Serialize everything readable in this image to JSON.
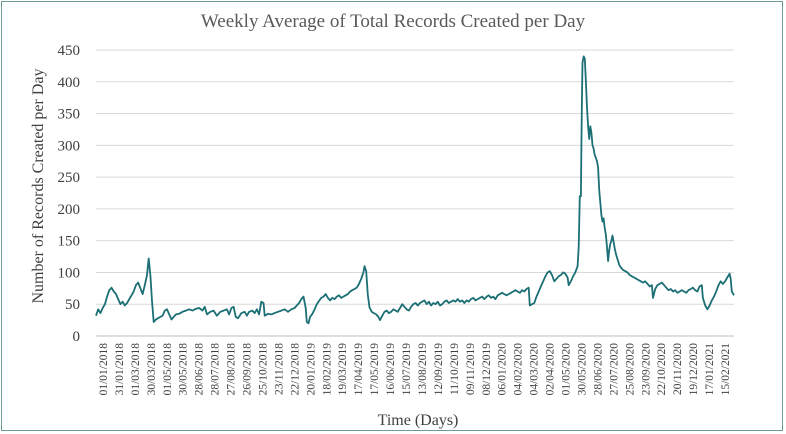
{
  "chart_data": {
    "type": "line",
    "title": "Weekly Average of Total Records Created per Day",
    "xlabel": "Time (Days)",
    "ylabel": "Number of Records Created per Day",
    "ylim": [
      0,
      450
    ],
    "yticks": [
      0,
      50,
      100,
      150,
      200,
      250,
      300,
      350,
      400,
      450
    ],
    "grid": true,
    "series_color": "#1b6f75",
    "xtick_labels": [
      "01/01/2018",
      "31/01/2018",
      "01/03/2018",
      "30/03/2018",
      "01/05/2018",
      "30/05/2018",
      "28/06/2018",
      "28/07/2018",
      "27/08/2018",
      "26/09/2018",
      "25/10/2018",
      "23/11/2018",
      "22/12/2018",
      "20/01/2019",
      "18/02/2019",
      "19/03/2019",
      "17/04/2019",
      "17/05/2019",
      "16/06/2019",
      "15/07/2019",
      "13/08/2019",
      "12/09/2019",
      "11/10/2019",
      "09/11/2019",
      "08/12/2019",
      "06/01/2020",
      "04/02/2020",
      "04/03/2020",
      "02/04/2020",
      "01/05/2020",
      "30/05/2020",
      "28/06/2020",
      "27/07/2020",
      "25/08/2020",
      "23/09/2020",
      "22/10/2020",
      "20/11/2020",
      "19/12/2020",
      "17/01/2021",
      "15/02/2021"
    ],
    "x_day_range": [
      0,
      1150
    ],
    "series": [
      {
        "name": "Weekly average",
        "points": [
          [
            0,
            32
          ],
          [
            4,
            42
          ],
          [
            8,
            36
          ],
          [
            12,
            44
          ],
          [
            16,
            50
          ],
          [
            20,
            62
          ],
          [
            24,
            72
          ],
          [
            28,
            76
          ],
          [
            32,
            70
          ],
          [
            36,
            66
          ],
          [
            40,
            58
          ],
          [
            44,
            50
          ],
          [
            48,
            54
          ],
          [
            52,
            48
          ],
          [
            56,
            52
          ],
          [
            60,
            58
          ],
          [
            64,
            64
          ],
          [
            68,
            70
          ],
          [
            72,
            80
          ],
          [
            76,
            84
          ],
          [
            80,
            75
          ],
          [
            84,
            66
          ],
          [
            88,
            80
          ],
          [
            92,
            96
          ],
          [
            95,
            122
          ],
          [
            98,
            95
          ],
          [
            101,
            55
          ],
          [
            104,
            22
          ],
          [
            108,
            26
          ],
          [
            112,
            28
          ],
          [
            116,
            30
          ],
          [
            120,
            32
          ],
          [
            124,
            40
          ],
          [
            128,
            42
          ],
          [
            132,
            34
          ],
          [
            136,
            26
          ],
          [
            140,
            30
          ],
          [
            144,
            34
          ],
          [
            150,
            35
          ],
          [
            156,
            38
          ],
          [
            162,
            40
          ],
          [
            168,
            42
          ],
          [
            174,
            40
          ],
          [
            180,
            43
          ],
          [
            186,
            44
          ],
          [
            192,
            40
          ],
          [
            196,
            46
          ],
          [
            200,
            34
          ],
          [
            206,
            38
          ],
          [
            212,
            40
          ],
          [
            218,
            32
          ],
          [
            224,
            38
          ],
          [
            230,
            40
          ],
          [
            236,
            42
          ],
          [
            240,
            34
          ],
          [
            244,
            44
          ],
          [
            248,
            46
          ],
          [
            252,
            30
          ],
          [
            256,
            28
          ],
          [
            262,
            36
          ],
          [
            268,
            38
          ],
          [
            272,
            32
          ],
          [
            276,
            38
          ],
          [
            282,
            40
          ],
          [
            286,
            36
          ],
          [
            290,
            42
          ],
          [
            294,
            34
          ],
          [
            298,
            54
          ],
          [
            302,
            52
          ],
          [
            304,
            32
          ],
          [
            310,
            35
          ],
          [
            316,
            34
          ],
          [
            322,
            36
          ],
          [
            328,
            38
          ],
          [
            334,
            40
          ],
          [
            340,
            42
          ],
          [
            346,
            38
          ],
          [
            352,
            42
          ],
          [
            358,
            44
          ],
          [
            362,
            48
          ],
          [
            366,
            52
          ],
          [
            370,
            58
          ],
          [
            374,
            62
          ],
          [
            378,
            44
          ],
          [
            380,
            22
          ],
          [
            383,
            20
          ],
          [
            386,
            30
          ],
          [
            390,
            35
          ],
          [
            394,
            42
          ],
          [
            398,
            50
          ],
          [
            402,
            55
          ],
          [
            406,
            60
          ],
          [
            410,
            62
          ],
          [
            414,
            66
          ],
          [
            418,
            60
          ],
          [
            422,
            56
          ],
          [
            426,
            60
          ],
          [
            430,
            58
          ],
          [
            434,
            62
          ],
          [
            438,
            64
          ],
          [
            442,
            60
          ],
          [
            446,
            62
          ],
          [
            450,
            64
          ],
          [
            454,
            66
          ],
          [
            458,
            70
          ],
          [
            462,
            72
          ],
          [
            466,
            74
          ],
          [
            470,
            76
          ],
          [
            474,
            82
          ],
          [
            478,
            90
          ],
          [
            482,
            100
          ],
          [
            484,
            110
          ],
          [
            487,
            102
          ],
          [
            490,
            65
          ],
          [
            493,
            45
          ],
          [
            497,
            38
          ],
          [
            501,
            36
          ],
          [
            505,
            34
          ],
          [
            509,
            30
          ],
          [
            512,
            25
          ],
          [
            516,
            32
          ],
          [
            520,
            38
          ],
          [
            524,
            40
          ],
          [
            528,
            36
          ],
          [
            532,
            38
          ],
          [
            536,
            42
          ],
          [
            540,
            40
          ],
          [
            544,
            38
          ],
          [
            548,
            44
          ],
          [
            552,
            50
          ],
          [
            556,
            46
          ],
          [
            560,
            42
          ],
          [
            564,
            40
          ],
          [
            568,
            46
          ],
          [
            572,
            50
          ],
          [
            576,
            52
          ],
          [
            580,
            48
          ],
          [
            584,
            52
          ],
          [
            588,
            54
          ],
          [
            592,
            56
          ],
          [
            596,
            50
          ],
          [
            600,
            54
          ],
          [
            604,
            48
          ],
          [
            608,
            52
          ],
          [
            612,
            50
          ],
          [
            616,
            54
          ],
          [
            620,
            48
          ],
          [
            624,
            50
          ],
          [
            628,
            54
          ],
          [
            632,
            56
          ],
          [
            636,
            52
          ],
          [
            640,
            54
          ],
          [
            644,
            56
          ],
          [
            648,
            54
          ],
          [
            652,
            58
          ],
          [
            656,
            54
          ],
          [
            660,
            56
          ],
          [
            664,
            52
          ],
          [
            668,
            56
          ],
          [
            672,
            54
          ],
          [
            676,
            58
          ],
          [
            680,
            60
          ],
          [
            684,
            56
          ],
          [
            688,
            58
          ],
          [
            692,
            60
          ],
          [
            696,
            62
          ],
          [
            700,
            58
          ],
          [
            704,
            62
          ],
          [
            708,
            64
          ],
          [
            712,
            60
          ],
          [
            716,
            62
          ],
          [
            720,
            58
          ],
          [
            724,
            64
          ],
          [
            728,
            66
          ],
          [
            732,
            68
          ],
          [
            736,
            66
          ],
          [
            740,
            64
          ],
          [
            744,
            66
          ],
          [
            748,
            68
          ],
          [
            752,
            70
          ],
          [
            756,
            72
          ],
          [
            760,
            70
          ],
          [
            764,
            68
          ],
          [
            768,
            72
          ],
          [
            772,
            70
          ],
          [
            776,
            74
          ],
          [
            780,
            76
          ],
          [
            782,
            48
          ],
          [
            786,
            50
          ],
          [
            790,
            52
          ],
          [
            794,
            62
          ],
          [
            798,
            70
          ],
          [
            802,
            78
          ],
          [
            806,
            86
          ],
          [
            810,
            94
          ],
          [
            814,
            100
          ],
          [
            818,
            102
          ],
          [
            822,
            96
          ],
          [
            826,
            86
          ],
          [
            830,
            90
          ],
          [
            834,
            94
          ],
          [
            838,
            96
          ],
          [
            842,
            100
          ],
          [
            846,
            98
          ],
          [
            850,
            92
          ],
          [
            852,
            80
          ],
          [
            856,
            86
          ],
          [
            860,
            94
          ],
          [
            864,
            100
          ],
          [
            868,
            110
          ],
          [
            870,
            140
          ],
          [
            872,
            220
          ],
          [
            874,
            220
          ],
          [
            875,
            300
          ],
          [
            876,
            380
          ],
          [
            877,
            430
          ],
          [
            879,
            440
          ],
          [
            881,
            436
          ],
          [
            883,
            400
          ],
          [
            885,
            360
          ],
          [
            887,
            330
          ],
          [
            889,
            310
          ],
          [
            891,
            330
          ],
          [
            893,
            320
          ],
          [
            895,
            300
          ],
          [
            897,
            295
          ],
          [
            899,
            285
          ],
          [
            901,
            280
          ],
          [
            903,
            275
          ],
          [
            905,
            265
          ],
          [
            907,
            230
          ],
          [
            909,
            210
          ],
          [
            911,
            190
          ],
          [
            913,
            180
          ],
          [
            915,
            185
          ],
          [
            917,
            170
          ],
          [
            919,
            160
          ],
          [
            921,
            140
          ],
          [
            923,
            118
          ],
          [
            925,
            135
          ],
          [
            927,
            145
          ],
          [
            929,
            150
          ],
          [
            931,
            158
          ],
          [
            933,
            148
          ],
          [
            935,
            138
          ],
          [
            937,
            130
          ],
          [
            939,
            124
          ],
          [
            941,
            118
          ],
          [
            943,
            112
          ],
          [
            946,
            108
          ],
          [
            950,
            104
          ],
          [
            954,
            102
          ],
          [
            958,
            100
          ],
          [
            962,
            96
          ],
          [
            966,
            94
          ],
          [
            970,
            92
          ],
          [
            974,
            90
          ],
          [
            978,
            88
          ],
          [
            982,
            86
          ],
          [
            986,
            84
          ],
          [
            990,
            86
          ],
          [
            994,
            82
          ],
          [
            998,
            78
          ],
          [
            1002,
            80
          ],
          [
            1004,
            60
          ],
          [
            1008,
            74
          ],
          [
            1012,
            80
          ],
          [
            1016,
            82
          ],
          [
            1020,
            84
          ],
          [
            1024,
            80
          ],
          [
            1028,
            76
          ],
          [
            1032,
            72
          ],
          [
            1036,
            74
          ],
          [
            1040,
            70
          ],
          [
            1044,
            72
          ],
          [
            1048,
            68
          ],
          [
            1052,
            70
          ],
          [
            1056,
            72
          ],
          [
            1060,
            70
          ],
          [
            1064,
            68
          ],
          [
            1068,
            72
          ],
          [
            1072,
            74
          ],
          [
            1076,
            76
          ],
          [
            1080,
            72
          ],
          [
            1084,
            70
          ],
          [
            1088,
            78
          ],
          [
            1092,
            80
          ],
          [
            1094,
            60
          ],
          [
            1098,
            48
          ],
          [
            1102,
            42
          ],
          [
            1106,
            48
          ],
          [
            1110,
            56
          ],
          [
            1114,
            62
          ],
          [
            1118,
            70
          ],
          [
            1122,
            80
          ],
          [
            1126,
            86
          ],
          [
            1130,
            82
          ],
          [
            1134,
            86
          ],
          [
            1138,
            92
          ],
          [
            1142,
            98
          ],
          [
            1144,
            90
          ],
          [
            1146,
            70
          ],
          [
            1150,
            64
          ]
        ]
      }
    ]
  }
}
